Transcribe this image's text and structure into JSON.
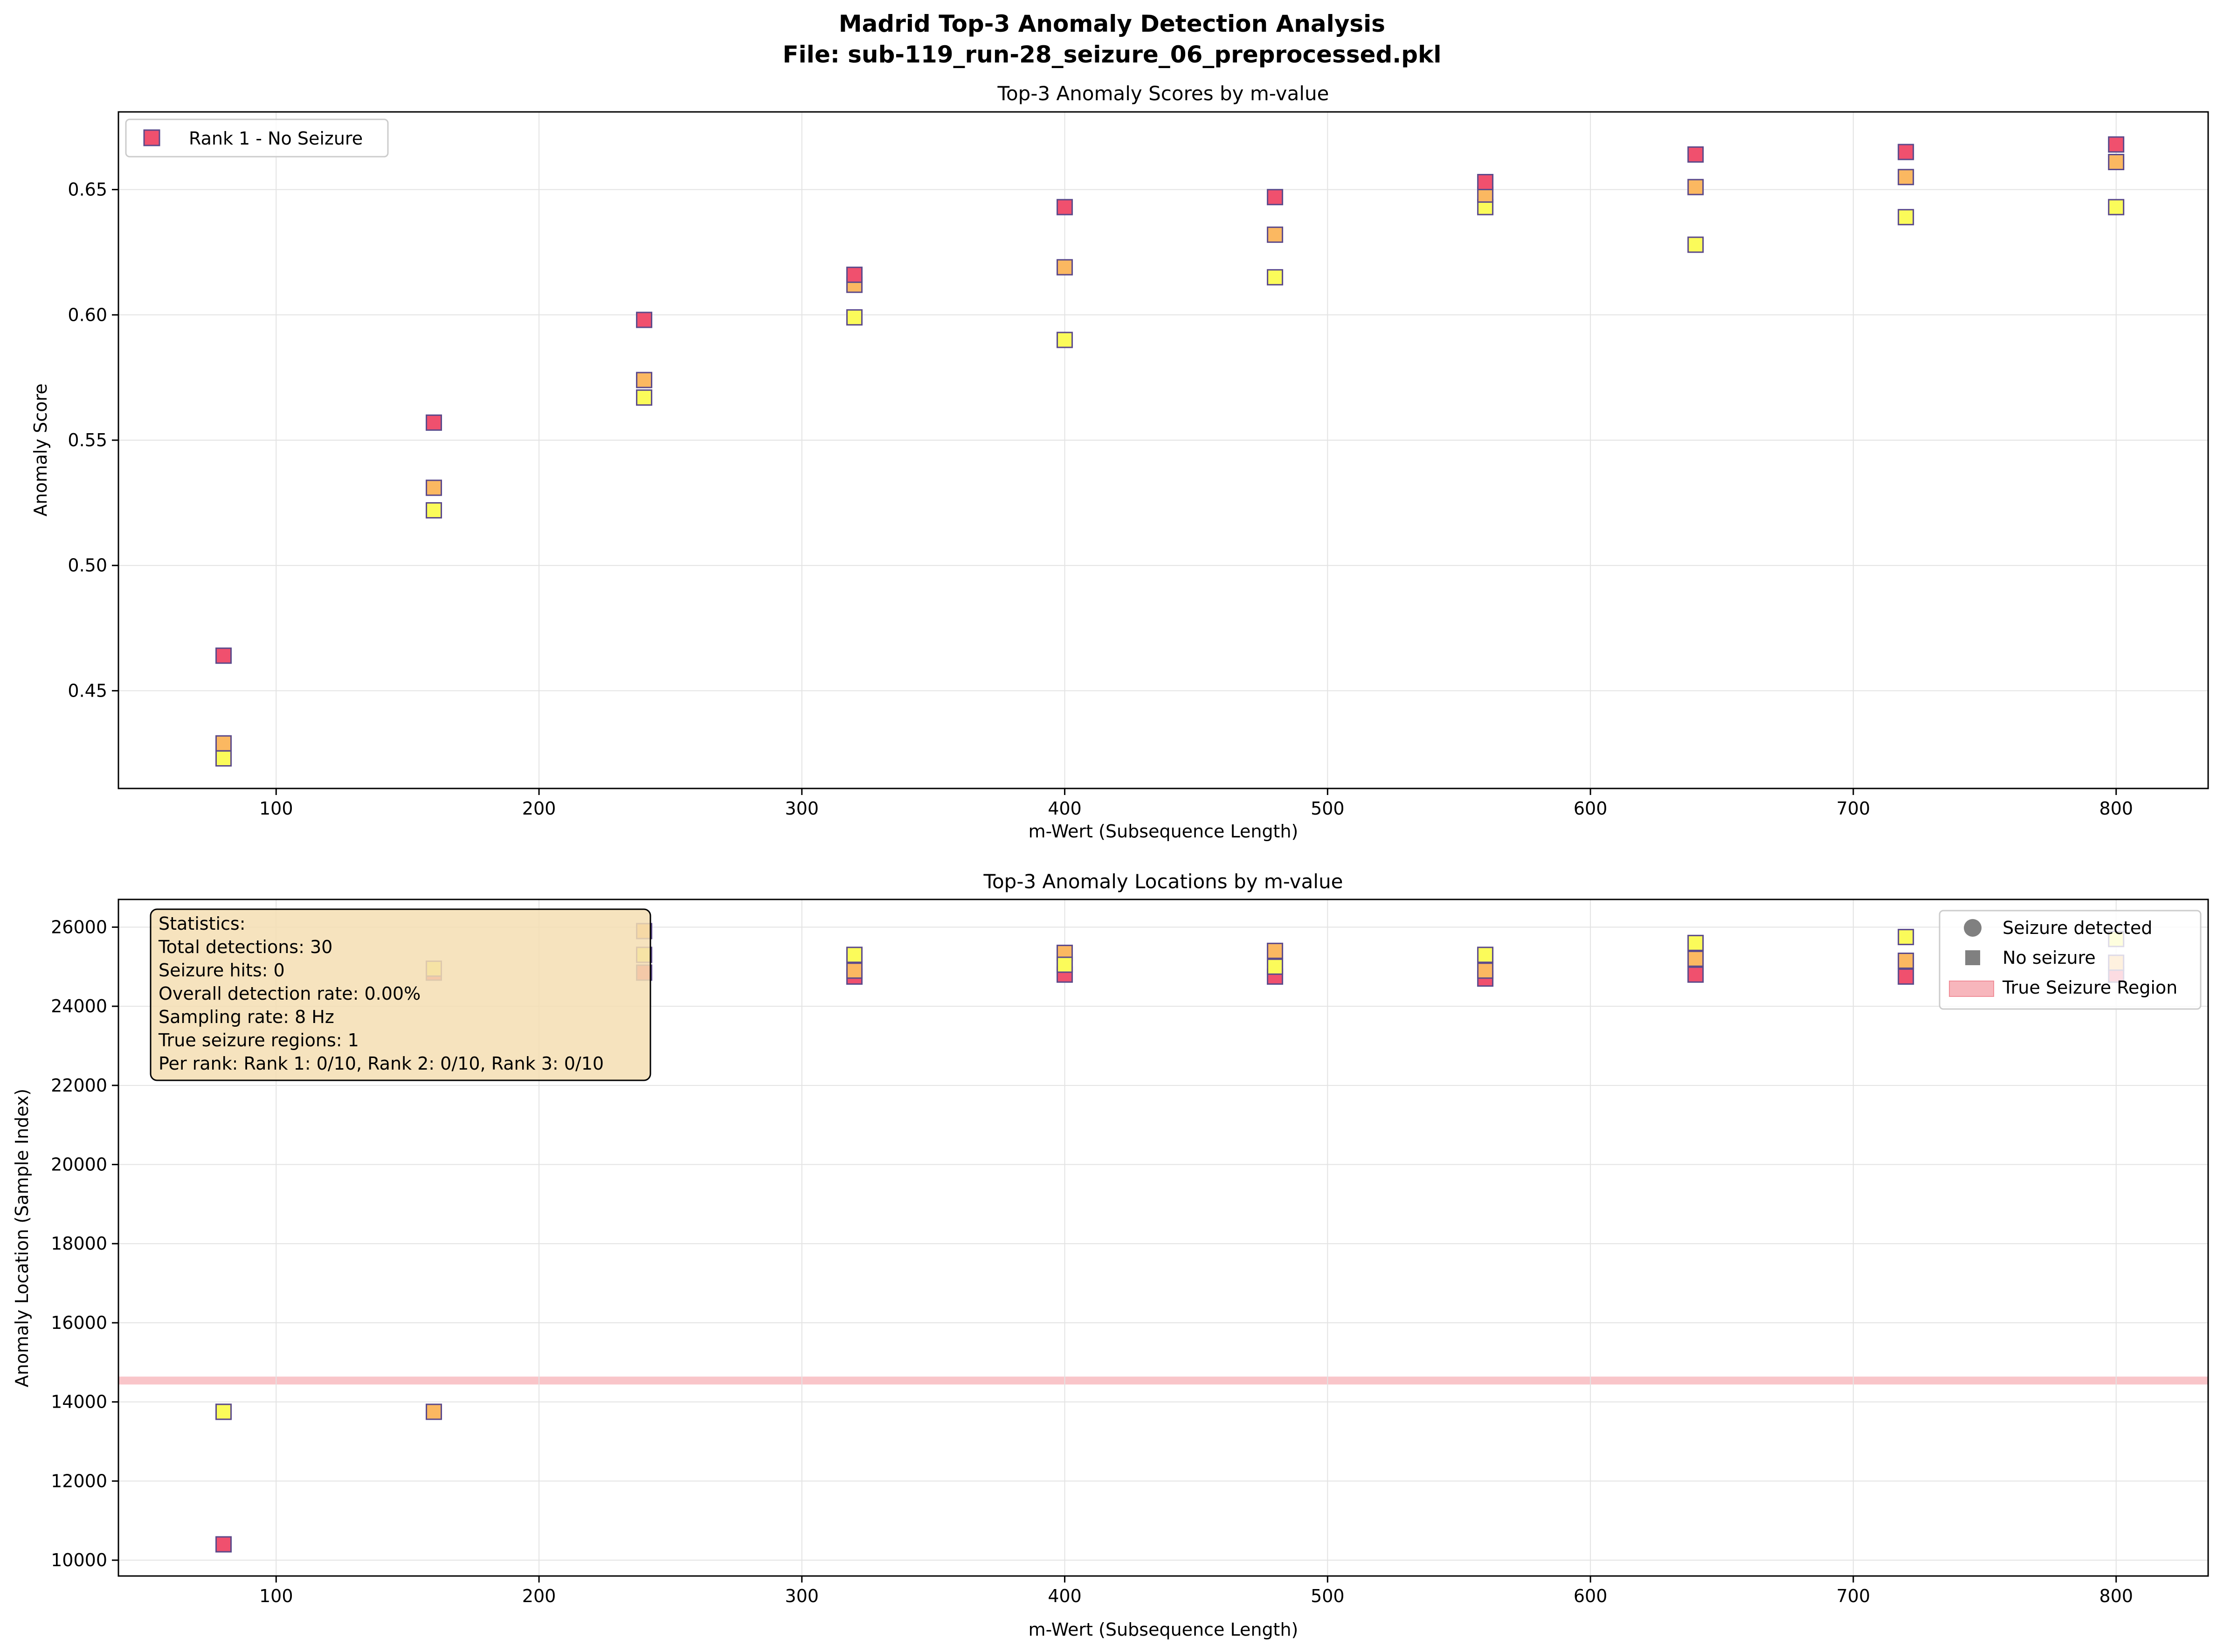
{
  "figure": {
    "suptitle_line1": "Madrid Top-3 Anomaly Detection Analysis",
    "suptitle_line2": "File: sub-119_run-28_seizure_06_preprocessed.pkl"
  },
  "colors": {
    "rank1": "#f0506e",
    "rank2": "#fbb861",
    "rank3": "#fbfb5a",
    "marker_edge": "#5b4a8b",
    "grid": "#e3e3e3",
    "seizure_region": "#f7b6bc",
    "stats_box_fill": "#f5deb3"
  },
  "chart_data": [
    {
      "type": "scatter",
      "title": "Top-3 Anomaly Scores by m-value",
      "xlabel": "m-Wert (Subsequence Length)",
      "ylabel": "Anomaly Score",
      "xlim": [
        40,
        835
      ],
      "ylim": [
        0.411,
        0.681
      ],
      "xticks": [
        100,
        200,
        300,
        400,
        500,
        600,
        700,
        800
      ],
      "yticks": [
        0.45,
        0.5,
        0.55,
        0.6,
        0.65
      ],
      "ytick_labels": [
        "0.45",
        "0.50",
        "0.55",
        "0.60",
        "0.65"
      ],
      "grid": true,
      "legend_position": "upper-left",
      "legend": [
        "Rank 1 - No Seizure"
      ],
      "x": [
        80,
        160,
        240,
        320,
        400,
        480,
        560,
        640,
        720,
        800
      ],
      "series": [
        {
          "rank": 3,
          "values": [
            0.423,
            0.522,
            0.567,
            0.599,
            0.59,
            0.615,
            0.643,
            0.628,
            0.639,
            0.643
          ]
        },
        {
          "rank": 2,
          "values": [
            0.429,
            0.531,
            0.574,
            0.612,
            0.619,
            0.632,
            0.648,
            0.651,
            0.655,
            0.661
          ]
        },
        {
          "rank": 1,
          "values": [
            0.464,
            0.557,
            0.598,
            0.616,
            0.643,
            0.647,
            0.653,
            0.664,
            0.665,
            0.668
          ]
        }
      ]
    },
    {
      "type": "scatter",
      "title": "Top-3 Anomaly Locations by m-value",
      "xlabel": "m-Wert (Subsequence Length)",
      "ylabel": "Anomaly Location (Sample Index)",
      "xlim": [
        40,
        835
      ],
      "ylim": [
        9600,
        26700
      ],
      "xticks": [
        100,
        200,
        300,
        400,
        500,
        600,
        700,
        800
      ],
      "yticks": [
        10000,
        12000,
        14000,
        16000,
        18000,
        20000,
        22000,
        24000,
        26000
      ],
      "grid": true,
      "legend_position": "upper-right",
      "legend": [
        "Seizure detected",
        "No seizure",
        "True Seizure Region"
      ],
      "seizure_region": [
        14440,
        14640
      ],
      "x": [
        80,
        160,
        240,
        320,
        400,
        480,
        560,
        640,
        720,
        800
      ],
      "series": [
        {
          "rank": 1,
          "values": [
            10400,
            24850,
            24850,
            24750,
            24800,
            24750,
            24700,
            24800,
            24750,
            24800
          ]
        },
        {
          "rank": 2,
          "values": [
            13750,
            13750,
            25900,
            24900,
            25350,
            25400,
            24900,
            25200,
            25150,
            25100
          ]
        },
        {
          "rank": 3,
          "values": [
            13750,
            24950,
            25300,
            25300,
            25050,
            25000,
            25300,
            25600,
            25750,
            25700
          ]
        }
      ],
      "statistics": {
        "lines": [
          "Statistics:",
          "Total detections: 30",
          "Seizure hits: 0",
          "Overall detection rate: 0.00%",
          "Sampling rate: 8 Hz",
          "True seizure regions: 1",
          "Per rank: Rank 1: 0/10, Rank 2: 0/10, Rank 3: 0/10"
        ]
      }
    }
  ]
}
